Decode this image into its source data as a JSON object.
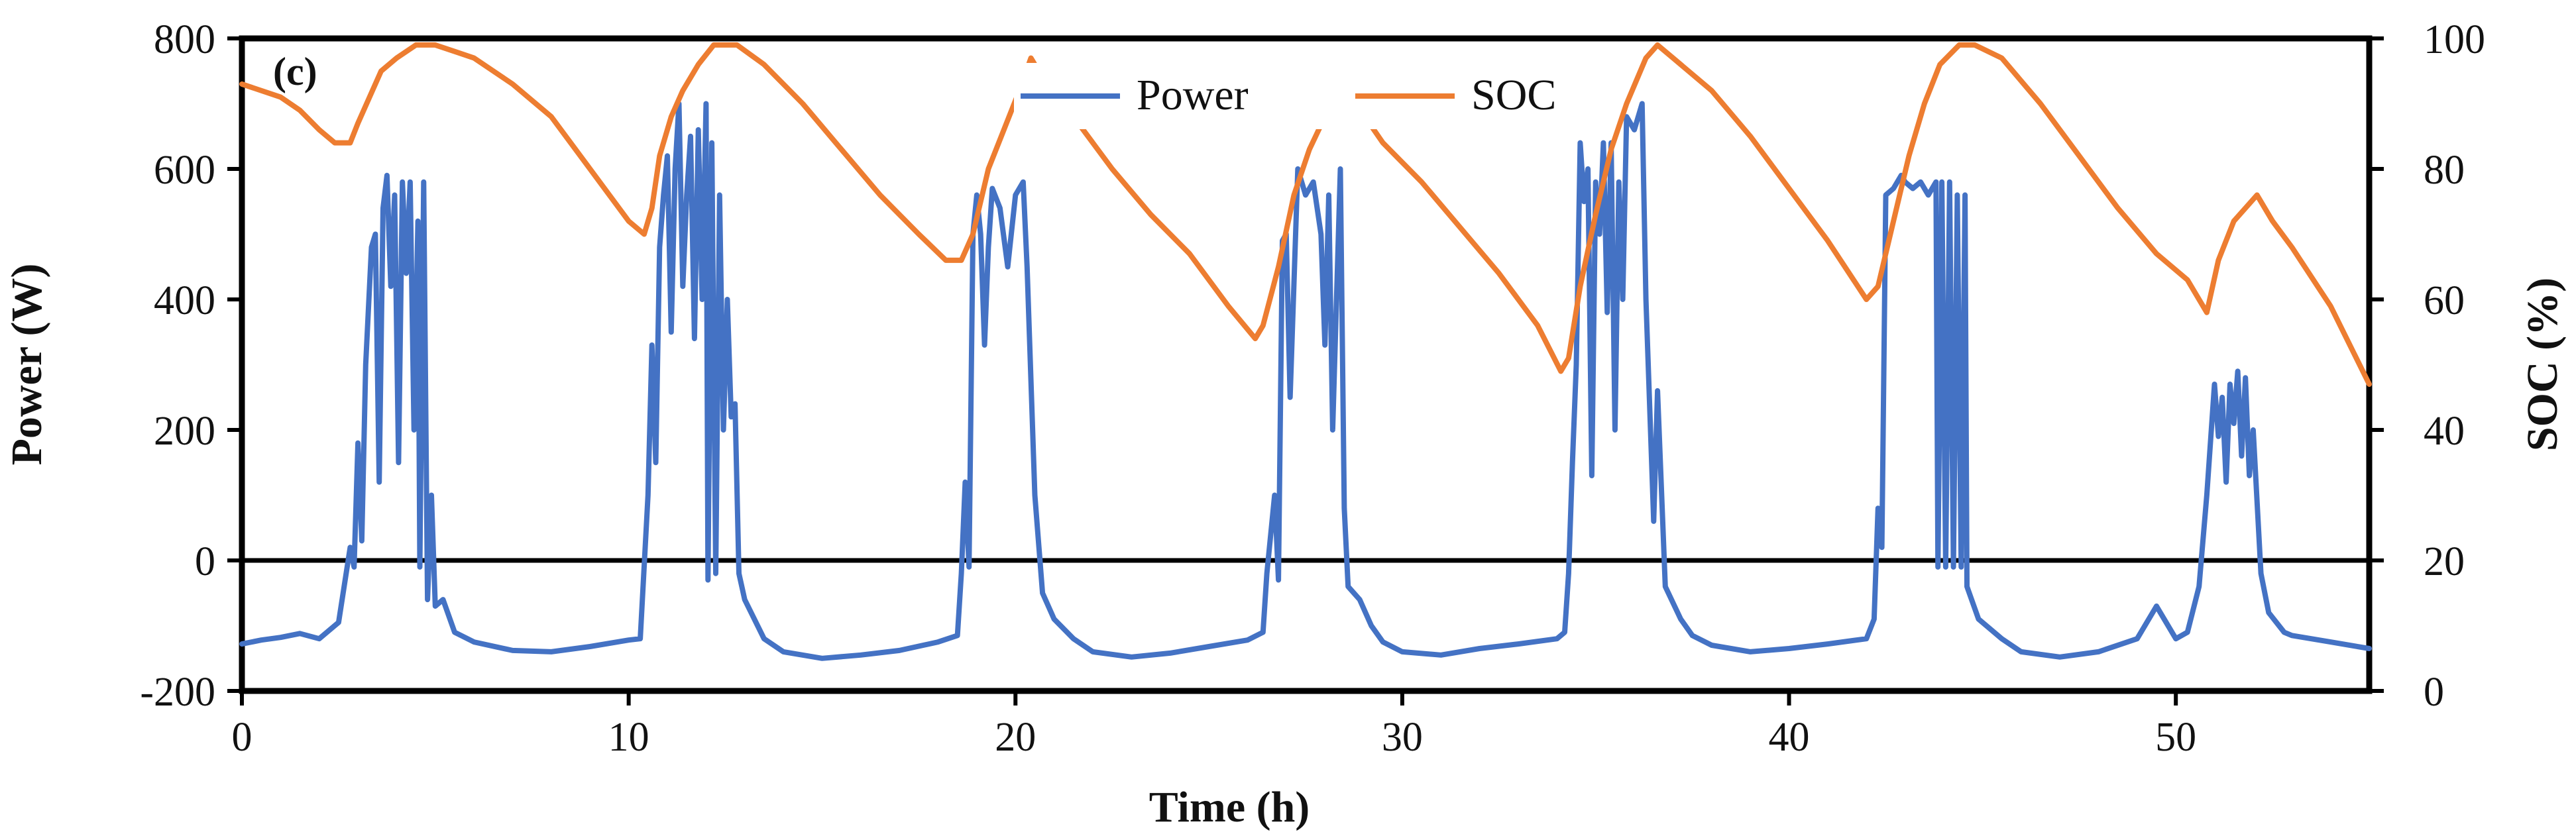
{
  "chart_data": {
    "type": "line",
    "panel_label": "(c)",
    "title": "",
    "xlabel": "Time (h)",
    "ylabel_left": "Power (W)",
    "ylabel_right": "SOC (%)",
    "xlim": [
      0,
      55
    ],
    "ylim_left": [
      -200,
      800
    ],
    "ylim_right": [
      0,
      100
    ],
    "x_ticks": [
      0,
      10,
      20,
      30,
      40,
      50
    ],
    "y_left_ticks": [
      -200,
      0,
      200,
      400,
      600,
      800
    ],
    "y_right_ticks": [
      0,
      20,
      40,
      60,
      80,
      100
    ],
    "zero_line": 0,
    "grid": false,
    "legend_position": "top-center",
    "series": [
      {
        "name": "Power",
        "axis": "left",
        "color": "#4472C4",
        "points": [
          [
            0,
            -128
          ],
          [
            0.5,
            -122
          ],
          [
            1,
            -118
          ],
          [
            1.5,
            -112
          ],
          [
            2,
            -120
          ],
          [
            2.5,
            -95
          ],
          [
            2.8,
            20
          ],
          [
            2.9,
            -10
          ],
          [
            3.0,
            180
          ],
          [
            3.1,
            30
          ],
          [
            3.2,
            300
          ],
          [
            3.35,
            480
          ],
          [
            3.45,
            500
          ],
          [
            3.55,
            120
          ],
          [
            3.65,
            540
          ],
          [
            3.75,
            590
          ],
          [
            3.85,
            420
          ],
          [
            3.95,
            560
          ],
          [
            4.05,
            150
          ],
          [
            4.15,
            580
          ],
          [
            4.25,
            440
          ],
          [
            4.35,
            580
          ],
          [
            4.45,
            200
          ],
          [
            4.55,
            520
          ],
          [
            4.6,
            -10
          ],
          [
            4.7,
            580
          ],
          [
            4.8,
            -60
          ],
          [
            4.9,
            100
          ],
          [
            5.0,
            -70
          ],
          [
            5.2,
            -60
          ],
          [
            5.5,
            -110
          ],
          [
            6,
            -125
          ],
          [
            7,
            -138
          ],
          [
            8,
            -140
          ],
          [
            9,
            -132
          ],
          [
            10,
            -122
          ],
          [
            10.3,
            -120
          ],
          [
            10.5,
            100
          ],
          [
            10.6,
            330
          ],
          [
            10.7,
            150
          ],
          [
            10.8,
            480
          ],
          [
            10.9,
            560
          ],
          [
            11.0,
            620
          ],
          [
            11.1,
            350
          ],
          [
            11.2,
            600
          ],
          [
            11.3,
            700
          ],
          [
            11.4,
            420
          ],
          [
            11.5,
            560
          ],
          [
            11.6,
            650
          ],
          [
            11.7,
            340
          ],
          [
            11.8,
            660
          ],
          [
            11.9,
            400
          ],
          [
            12.0,
            700
          ],
          [
            12.05,
            -30
          ],
          [
            12.15,
            640
          ],
          [
            12.25,
            -20
          ],
          [
            12.35,
            560
          ],
          [
            12.45,
            200
          ],
          [
            12.55,
            400
          ],
          [
            12.65,
            220
          ],
          [
            12.75,
            240
          ],
          [
            12.85,
            -20
          ],
          [
            13.0,
            -60
          ],
          [
            13.5,
            -120
          ],
          [
            14,
            -140
          ],
          [
            15,
            -150
          ],
          [
            16,
            -145
          ],
          [
            17,
            -138
          ],
          [
            18,
            -125
          ],
          [
            18.5,
            -115
          ],
          [
            18.6,
            -20
          ],
          [
            18.7,
            120
          ],
          [
            18.8,
            -10
          ],
          [
            18.9,
            500
          ],
          [
            19.0,
            560
          ],
          [
            19.1,
            500
          ],
          [
            19.2,
            330
          ],
          [
            19.3,
            480
          ],
          [
            19.4,
            570
          ],
          [
            19.6,
            540
          ],
          [
            19.8,
            450
          ],
          [
            20.0,
            560
          ],
          [
            20.2,
            580
          ],
          [
            20.3,
            450
          ],
          [
            20.5,
            100
          ],
          [
            20.7,
            -50
          ],
          [
            21.0,
            -90
          ],
          [
            21.5,
            -120
          ],
          [
            22,
            -140
          ],
          [
            23,
            -148
          ],
          [
            24,
            -142
          ],
          [
            25,
            -132
          ],
          [
            26,
            -122
          ],
          [
            26.4,
            -110
          ],
          [
            26.5,
            -20
          ],
          [
            26.7,
            100
          ],
          [
            26.8,
            -30
          ],
          [
            26.9,
            490
          ],
          [
            27.0,
            500
          ],
          [
            27.1,
            250
          ],
          [
            27.3,
            600
          ],
          [
            27.5,
            560
          ],
          [
            27.7,
            580
          ],
          [
            27.9,
            500
          ],
          [
            28.0,
            330
          ],
          [
            28.1,
            560
          ],
          [
            28.2,
            200
          ],
          [
            28.4,
            600
          ],
          [
            28.5,
            80
          ],
          [
            28.6,
            -40
          ],
          [
            28.9,
            -60
          ],
          [
            29.2,
            -100
          ],
          [
            29.5,
            -125
          ],
          [
            30,
            -140
          ],
          [
            31,
            -145
          ],
          [
            32,
            -135
          ],
          [
            33,
            -128
          ],
          [
            34,
            -120
          ],
          [
            34.2,
            -110
          ],
          [
            34.3,
            -20
          ],
          [
            34.4,
            150
          ],
          [
            34.5,
            300
          ],
          [
            34.6,
            640
          ],
          [
            34.7,
            550
          ],
          [
            34.8,
            600
          ],
          [
            34.9,
            130
          ],
          [
            35.0,
            580
          ],
          [
            35.1,
            500
          ],
          [
            35.2,
            640
          ],
          [
            35.3,
            380
          ],
          [
            35.4,
            640
          ],
          [
            35.5,
            200
          ],
          [
            35.6,
            580
          ],
          [
            35.7,
            400
          ],
          [
            35.8,
            680
          ],
          [
            36.0,
            660
          ],
          [
            36.2,
            700
          ],
          [
            36.3,
            400
          ],
          [
            36.5,
            60
          ],
          [
            36.6,
            260
          ],
          [
            36.8,
            -40
          ],
          [
            37.2,
            -90
          ],
          [
            37.5,
            -115
          ],
          [
            38,
            -130
          ],
          [
            39,
            -140
          ],
          [
            40,
            -135
          ],
          [
            41,
            -128
          ],
          [
            42,
            -120
          ],
          [
            42.2,
            -90
          ],
          [
            42.3,
            80
          ],
          [
            42.4,
            20
          ],
          [
            42.5,
            560
          ],
          [
            42.7,
            570
          ],
          [
            42.9,
            590
          ],
          [
            43.0,
            580
          ],
          [
            43.2,
            570
          ],
          [
            43.4,
            580
          ],
          [
            43.6,
            560
          ],
          [
            43.8,
            580
          ],
          [
            43.85,
            -10
          ],
          [
            43.95,
            580
          ],
          [
            44.05,
            -10
          ],
          [
            44.15,
            580
          ],
          [
            44.25,
            -10
          ],
          [
            44.35,
            560
          ],
          [
            44.45,
            -10
          ],
          [
            44.55,
            560
          ],
          [
            44.6,
            -40
          ],
          [
            44.9,
            -90
          ],
          [
            45.5,
            -120
          ],
          [
            46,
            -140
          ],
          [
            47,
            -148
          ],
          [
            48,
            -140
          ],
          [
            49,
            -120
          ],
          [
            49.5,
            -70
          ],
          [
            49.6,
            -80
          ],
          [
            50,
            -120
          ],
          [
            50.3,
            -110
          ],
          [
            50.6,
            -40
          ],
          [
            50.8,
            100
          ],
          [
            51.0,
            270
          ],
          [
            51.1,
            190
          ],
          [
            51.2,
            250
          ],
          [
            51.3,
            120
          ],
          [
            51.4,
            270
          ],
          [
            51.5,
            210
          ],
          [
            51.6,
            290
          ],
          [
            51.7,
            160
          ],
          [
            51.8,
            280
          ],
          [
            51.9,
            130
          ],
          [
            52.0,
            200
          ],
          [
            52.2,
            -20
          ],
          [
            52.4,
            -80
          ],
          [
            52.8,
            -110
          ],
          [
            53,
            -115
          ],
          [
            54,
            -125
          ],
          [
            55,
            -135
          ]
        ]
      },
      {
        "name": "SOC",
        "axis": "right",
        "color": "#ED7D31",
        "points": [
          [
            0,
            93
          ],
          [
            1,
            91
          ],
          [
            1.5,
            89
          ],
          [
            2,
            86
          ],
          [
            2.4,
            84
          ],
          [
            2.8,
            84
          ],
          [
            3.0,
            87
          ],
          [
            3.3,
            91
          ],
          [
            3.6,
            95
          ],
          [
            4.0,
            97
          ],
          [
            4.5,
            99
          ],
          [
            5,
            99
          ],
          [
            5.5,
            98
          ],
          [
            6,
            97
          ],
          [
            7,
            93
          ],
          [
            8,
            88
          ],
          [
            9,
            80
          ],
          [
            10,
            72
          ],
          [
            10.4,
            70
          ],
          [
            10.6,
            74
          ],
          [
            10.8,
            82
          ],
          [
            11.1,
            88
          ],
          [
            11.4,
            92
          ],
          [
            11.8,
            96
          ],
          [
            12.2,
            99
          ],
          [
            12.8,
            99
          ],
          [
            13.5,
            96
          ],
          [
            14.5,
            90
          ],
          [
            15.5,
            83
          ],
          [
            16.5,
            76
          ],
          [
            17.5,
            70
          ],
          [
            18.2,
            66
          ],
          [
            18.6,
            66
          ],
          [
            18.9,
            70
          ],
          [
            19.3,
            80
          ],
          [
            19.7,
            86
          ],
          [
            20.1,
            92
          ],
          [
            20.4,
            97
          ],
          [
            20.7,
            94
          ],
          [
            21.5,
            88
          ],
          [
            22.5,
            80
          ],
          [
            23.5,
            73
          ],
          [
            24.5,
            67
          ],
          [
            25.5,
            59
          ],
          [
            26.2,
            54
          ],
          [
            26.4,
            56
          ],
          [
            26.8,
            65
          ],
          [
            27.2,
            76
          ],
          [
            27.6,
            83
          ],
          [
            28.0,
            88
          ],
          [
            28.3,
            93
          ],
          [
            28.8,
            90
          ],
          [
            29.5,
            84
          ],
          [
            30.5,
            78
          ],
          [
            31.5,
            71
          ],
          [
            32.5,
            64
          ],
          [
            33.5,
            56
          ],
          [
            34.1,
            49
          ],
          [
            34.3,
            51
          ],
          [
            34.6,
            62
          ],
          [
            35.0,
            73
          ],
          [
            35.4,
            83
          ],
          [
            35.8,
            90
          ],
          [
            36.3,
            97
          ],
          [
            36.6,
            99
          ],
          [
            37,
            97
          ],
          [
            38,
            92
          ],
          [
            39,
            85
          ],
          [
            40,
            77
          ],
          [
            41,
            69
          ],
          [
            42.0,
            60
          ],
          [
            42.3,
            62
          ],
          [
            42.7,
            72
          ],
          [
            43.1,
            82
          ],
          [
            43.5,
            90
          ],
          [
            43.9,
            96
          ],
          [
            44.4,
            99
          ],
          [
            44.8,
            99
          ],
          [
            45.5,
            97
          ],
          [
            46.5,
            90
          ],
          [
            47.5,
            82
          ],
          [
            48.5,
            74
          ],
          [
            49.5,
            67
          ],
          [
            50.3,
            63
          ],
          [
            50.8,
            58
          ],
          [
            51.1,
            66
          ],
          [
            51.5,
            72
          ],
          [
            51.8,
            74
          ],
          [
            52.1,
            76
          ],
          [
            52.5,
            72
          ],
          [
            53,
            68
          ],
          [
            54,
            59
          ],
          [
            55,
            47
          ]
        ]
      }
    ]
  }
}
